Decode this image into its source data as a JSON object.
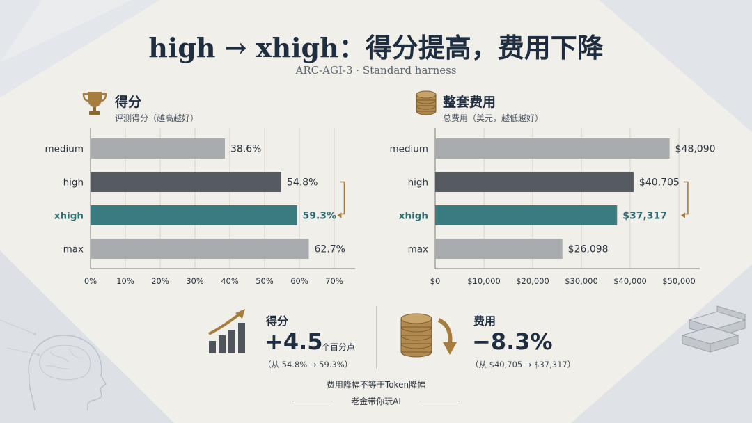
{
  "title": "high → xhigh：得分提高，费用下降",
  "subtitle": "ARC-AGI-3 · Standard harness",
  "colors": {
    "bar_gray": "#a9acaf",
    "bar_dark": "#555b61",
    "bar_teal": "#3a7b7f",
    "highlight_text": "#2f6e72",
    "accent_gold": "#a77c3f"
  },
  "chart_data": [
    {
      "type": "bar",
      "orientation": "horizontal",
      "title": "得分",
      "subtitle": "评测得分（越高越好）",
      "categories": [
        "medium",
        "high",
        "xhigh",
        "max"
      ],
      "values": [
        38.6,
        54.8,
        59.3,
        62.7
      ],
      "value_labels": [
        "38.6%",
        "54.8%",
        "59.3%",
        "62.7%"
      ],
      "highlight": "xhigh",
      "xlim": [
        0,
        70
      ],
      "x_ticks": [
        0,
        10,
        20,
        30,
        40,
        50,
        60,
        70
      ],
      "x_tick_labels": [
        "0%",
        "10%",
        "20%",
        "30%",
        "40%",
        "50%",
        "60%",
        "70%"
      ],
      "grid": true,
      "icon": "trophy-icon"
    },
    {
      "type": "bar",
      "orientation": "horizontal",
      "title": "整套费用",
      "subtitle": "总费用（美元，越低越好）",
      "categories": [
        "medium",
        "high",
        "xhigh",
        "max"
      ],
      "values": [
        48090,
        40705,
        37317,
        26098
      ],
      "value_labels": [
        "$48,090",
        "$40,705",
        "$37,317",
        "$26,098"
      ],
      "highlight": "xhigh",
      "xlim": [
        0,
        50000
      ],
      "x_ticks": [
        0,
        10000,
        20000,
        30000,
        40000,
        50000
      ],
      "x_tick_labels": [
        "$0",
        "$10,000",
        "$20,000",
        "$30,000",
        "$40,000",
        "$50,000"
      ],
      "grid": true,
      "icon": "coin-stack-icon"
    }
  ],
  "kpis": {
    "score": {
      "label": "得分",
      "value": "+4.5",
      "unit": "个百分点",
      "detail": "（从 54.8% → 59.3%）",
      "icon": "growth-bars-icon"
    },
    "cost": {
      "label": "费用",
      "value": "−8.3%",
      "detail": "（从 $40,705 → $37,317）",
      "icon": "coins-down-icon"
    }
  },
  "note": "费用降幅不等于Token降幅",
  "author": "老金带你玩AI"
}
